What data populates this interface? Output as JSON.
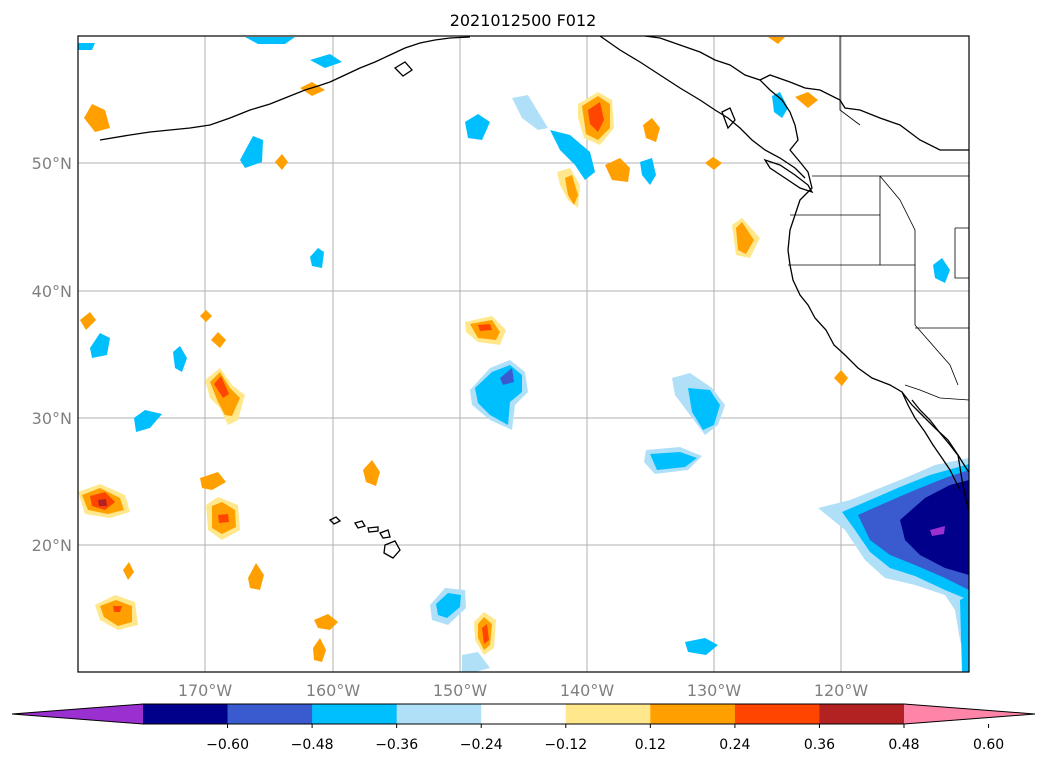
{
  "title": "2021012500 F012",
  "longitude_labels": [
    "170°W",
    "160°W",
    "150°W",
    "140°W",
    "130°W",
    "120°W"
  ],
  "latitude_labels": [
    "50°N",
    "40°N",
    "30°N",
    "20°N"
  ],
  "colorbar": {
    "tick_labels": [
      "−0.60",
      "−0.48",
      "−0.36",
      "−0.24",
      "−0.12",
      "0.12",
      "0.24",
      "0.36",
      "0.48",
      "0.60"
    ],
    "colors": [
      "#9b30d0",
      "#00008b",
      "#3a5bcf",
      "#00bfff",
      "#b0e0f8",
      "#ffffff",
      "#ffe88c",
      "#ffa000",
      "#ff4500",
      "#b22222",
      "#ff85a8"
    ]
  },
  "palette": {
    "coast": "#000000",
    "grid": "#b0b0b0"
  }
}
